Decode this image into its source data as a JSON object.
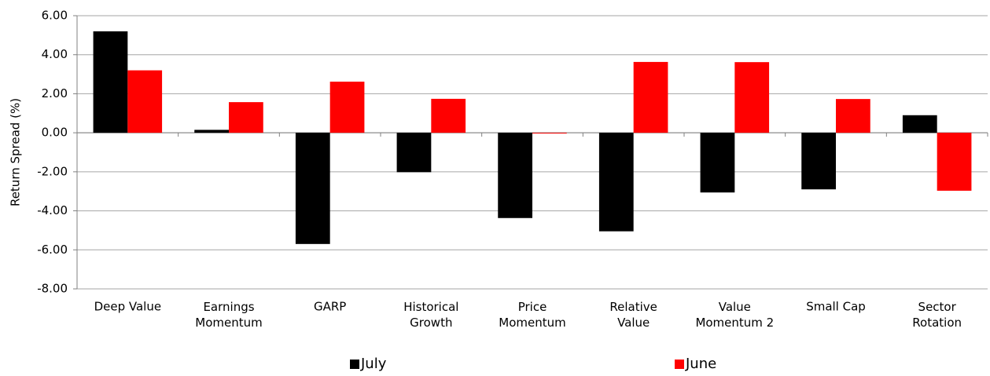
{
  "chart_data": {
    "type": "bar",
    "y_label": "Return Spread (%)",
    "categories": [
      "Deep Value",
      "Earnings\nMomentum",
      "GARP",
      "Historical\nGrowth",
      "Price\nMomentum",
      "Relative\nValue",
      "Value\nMomentum 2",
      "Small Cap",
      "Sector\nRotation"
    ],
    "series": [
      {
        "name": "July",
        "color": "#000000",
        "values": [
          5.2,
          0.15,
          -5.7,
          -2.02,
          -4.37,
          -5.05,
          -3.06,
          -2.9,
          0.9
        ]
      },
      {
        "name": "June",
        "color": "#ff0000",
        "values": [
          3.2,
          1.57,
          2.62,
          1.74,
          -0.03,
          3.63,
          3.62,
          1.73,
          -2.97
        ]
      }
    ],
    "ylim": [
      -8,
      6
    ],
    "yticks": [
      {
        "value": -8,
        "label": "-8.00"
      },
      {
        "value": -6,
        "label": "-6.00"
      },
      {
        "value": -4,
        "label": "-4.00"
      },
      {
        "value": -2,
        "label": "-2.00"
      },
      {
        "value": 0,
        "label": "0.00"
      },
      {
        "value": 2,
        "label": "2.00"
      },
      {
        "value": 4,
        "label": "4.00"
      },
      {
        "value": 6,
        "label": "6.00"
      }
    ],
    "grid": true,
    "legend": "bottom"
  }
}
